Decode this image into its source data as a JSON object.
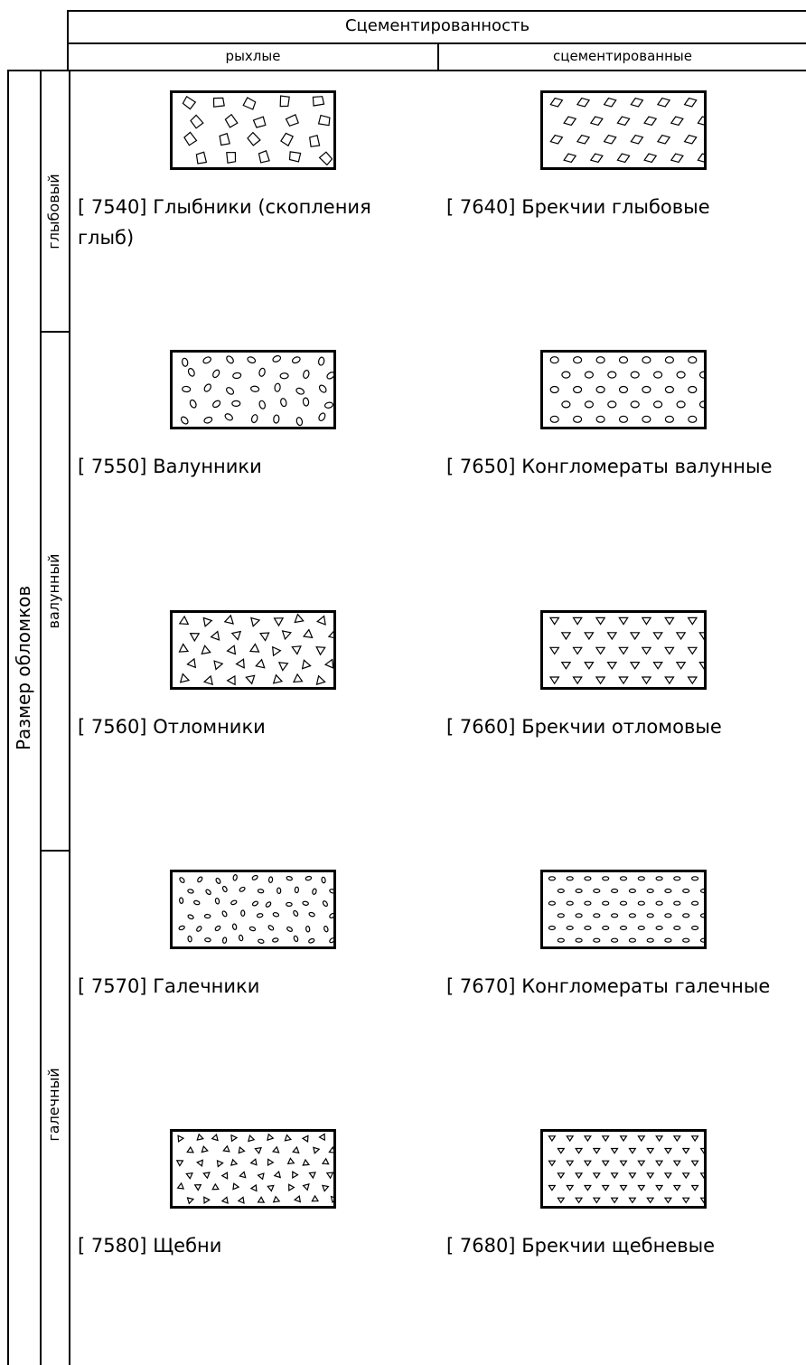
{
  "header": {
    "title": "Сцементированность",
    "col_loose": "рыхлые",
    "col_cemented": "сцементированные"
  },
  "axis": {
    "title": "Размер обломков",
    "groups": {
      "boulder_block": "глыбовый",
      "boulder": "валунный",
      "pebble": "галечный"
    }
  },
  "rows": [
    {
      "loose": {
        "code": "[ 7540]",
        "name": "Глыбники (скопления глыб)",
        "pattern": "quadrilaterals"
      },
      "cemented": {
        "code": "[ 7640]",
        "name": "Брекчии глыбовые",
        "pattern": "diamonds-regular"
      }
    },
    {
      "loose": {
        "code": "[ 7550]",
        "name": "Валунники",
        "pattern": "ovals-large-random"
      },
      "cemented": {
        "code": "[ 7650]",
        "name": "Конгломераты валунные",
        "pattern": "circles-regular"
      }
    },
    {
      "loose": {
        "code": "[ 7560]",
        "name": "Отломники",
        "pattern": "triangles-large-random"
      },
      "cemented": {
        "code": "[ 7660]",
        "name": "Брекчии отломовые",
        "pattern": "triangles-down-regular"
      }
    },
    {
      "loose": {
        "code": "[ 7570]",
        "name": "Галечники",
        "pattern": "ovals-small-random"
      },
      "cemented": {
        "code": "[ 7670]",
        "name": "Конгломераты галечные",
        "pattern": "ovals-small-regular"
      }
    },
    {
      "loose": {
        "code": "[ 7580]",
        "name": "Щебни",
        "pattern": "triangles-small-random"
      },
      "cemented": {
        "code": "[ 7680]",
        "name": "Брекчии щебневые",
        "pattern": "triangles-small-regular"
      }
    }
  ],
  "colors": {
    "line": "#000000",
    "background": "#ffffff"
  }
}
